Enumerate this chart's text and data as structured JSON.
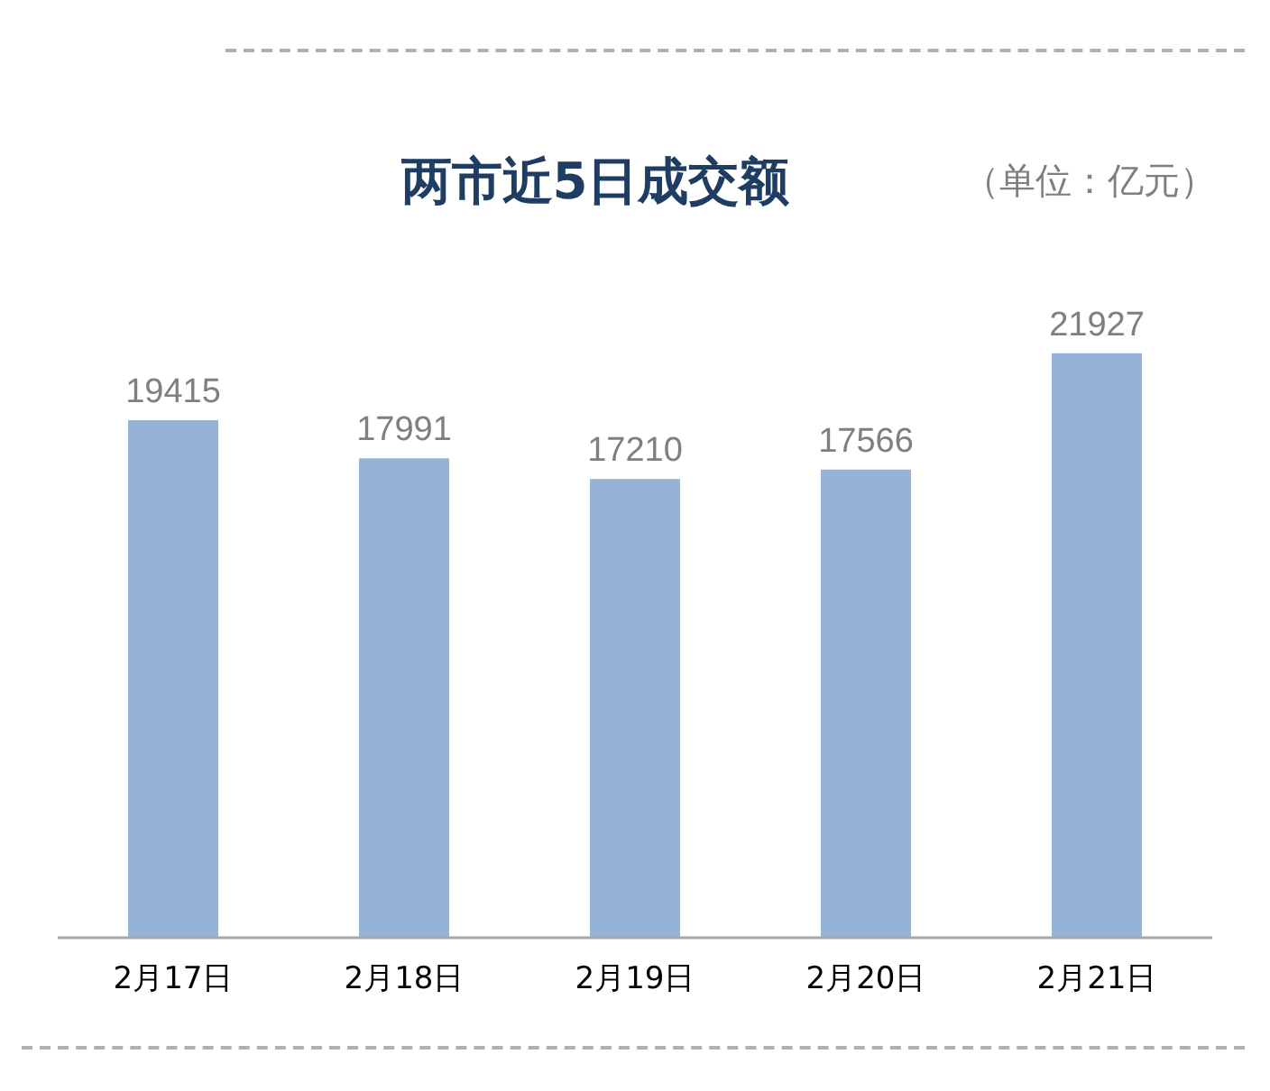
{
  "chart_data": {
    "type": "bar",
    "title": "两市近5日成交额",
    "annotations": [
      "（单位：亿元）"
    ],
    "categories": [
      "2月17日",
      "2月18日",
      "2月19日",
      "2月20日",
      "2月21日"
    ],
    "values": [
      19415,
      17991,
      17210,
      17566,
      21927
    ],
    "color": "#95b3d7",
    "tick_labels": "x",
    "data_labels": true,
    "grid": false,
    "legend": false
  }
}
